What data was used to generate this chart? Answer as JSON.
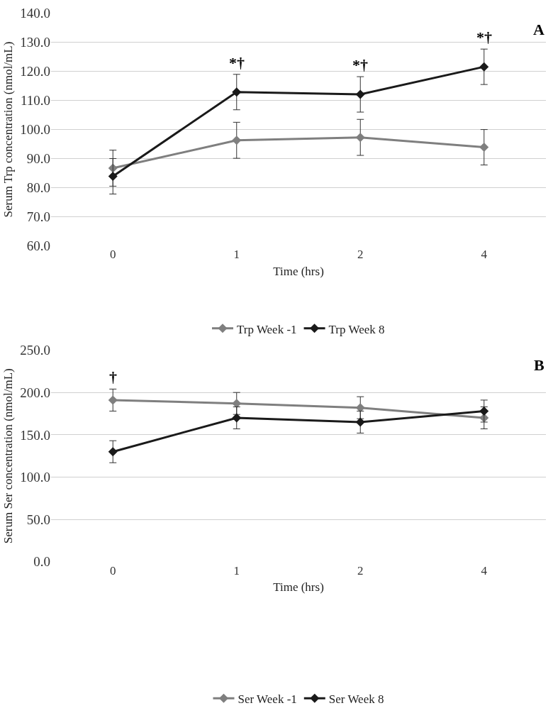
{
  "chart_data": [
    {
      "type": "line",
      "title": "A",
      "xlabel": "Time (hrs)",
      "ylabel": "Serum Trp concentration (nmol/mL)",
      "categories": [
        "0",
        "1",
        "2",
        "4"
      ],
      "ylim": [
        60,
        140
      ],
      "yticks": [
        {
          "value": 60,
          "label": "60.0"
        },
        {
          "value": 70,
          "label": "70.0"
        },
        {
          "value": 80,
          "label": "80.0"
        },
        {
          "value": 90,
          "label": "90.0"
        },
        {
          "value": 100,
          "label": "100.0"
        },
        {
          "value": 110,
          "label": "110.0"
        },
        {
          "value": 120,
          "label": "120.0"
        },
        {
          "value": 130,
          "label": "130.0"
        },
        {
          "value": 140,
          "label": "140.0"
        }
      ],
      "grid": "y",
      "legend": "bottom",
      "marker": "diamond",
      "line_style": "solid",
      "series": [
        {
          "name": "Trp Week -1",
          "color": "#7f7f7f",
          "values": [
            86.7,
            96.3,
            97.3,
            93.9
          ],
          "errors": [
            6.2,
            6.2,
            6.2,
            6.1
          ]
        },
        {
          "name": "Trp Week 8",
          "color": "#1a1a1a",
          "values": [
            83.9,
            112.9,
            112.1,
            121.6
          ],
          "errors": [
            6.1,
            6.1,
            6.1,
            6.1
          ]
        }
      ],
      "annotations": [
        {
          "text": "*†",
          "x": "1",
          "y": 112.9
        },
        {
          "text": "*†",
          "x": "2",
          "y": 112.1
        },
        {
          "text": "*†",
          "x": "4",
          "y": 121.6
        }
      ]
    },
    {
      "type": "line",
      "title": "B",
      "xlabel": "Time (hrs)",
      "ylabel": "Serum Ser concentration (nmol/mL)",
      "categories": [
        "0",
        "1",
        "2",
        "4"
      ],
      "ylim": [
        0,
        250
      ],
      "yticks": [
        {
          "value": 0,
          "label": "0.0"
        },
        {
          "value": 50,
          "label": "50.0"
        },
        {
          "value": 100,
          "label": "100.0"
        },
        {
          "value": 150,
          "label": "150.0"
        },
        {
          "value": 200,
          "label": "200.0"
        },
        {
          "value": 250,
          "label": "250.0"
        }
      ],
      "grid": "y",
      "legend": "bottom",
      "marker": "diamond",
      "line_style": "solid",
      "series": [
        {
          "name": "Ser Week -1",
          "color": "#7f7f7f",
          "values": [
            191,
            187,
            182,
            170
          ],
          "errors": [
            13,
            13,
            13,
            13
          ]
        },
        {
          "name": "Ser Week 8",
          "color": "#1a1a1a",
          "values": [
            130,
            170,
            165,
            178
          ],
          "errors": [
            13,
            13,
            13,
            13
          ]
        }
      ],
      "annotations": [
        {
          "text": "†",
          "x": "0",
          "y": 191
        }
      ]
    }
  ]
}
